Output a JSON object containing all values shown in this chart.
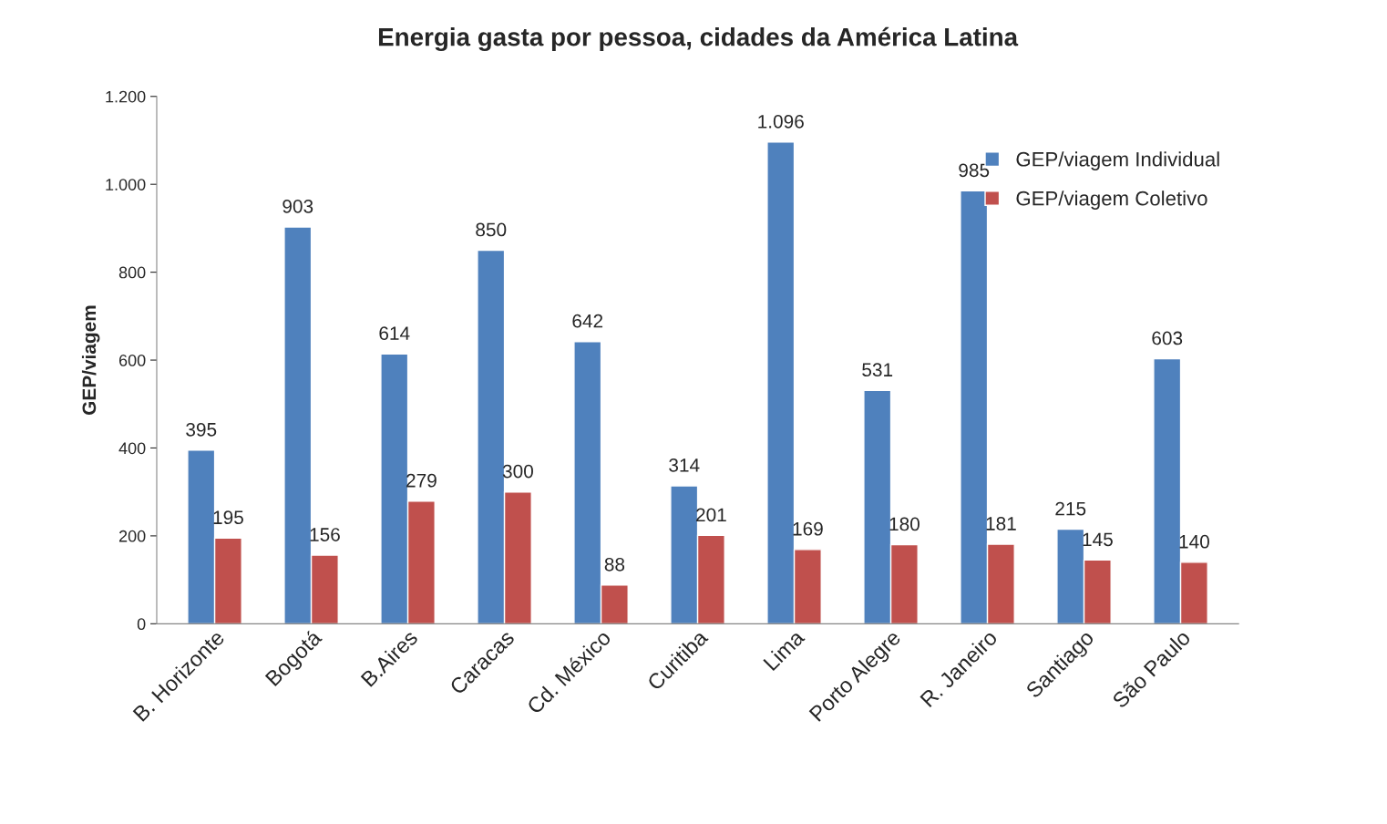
{
  "chart_data": {
    "type": "bar",
    "title": "Energia gasta por pessoa, cidades da América Latina",
    "ylabel": "GEP/viagem",
    "categories": [
      "B. Horizonte",
      "Bogotá",
      "B.Aires",
      "Caracas",
      "Cd. México",
      "Curitiba",
      "Lima",
      "Porto Alegre",
      "R. Janeiro",
      "Santiago",
      "São Paulo"
    ],
    "series": [
      {
        "name": "GEP/viagem Individual",
        "color": "#4f81bd",
        "values": [
          395,
          903,
          614,
          850,
          642,
          314,
          1096,
          531,
          985,
          215,
          603
        ],
        "value_labels": [
          "395",
          "903",
          "614",
          "850",
          "642",
          "314",
          "1.096",
          "531",
          "985",
          "215",
          "603"
        ]
      },
      {
        "name": "GEP/viagem Coletivo",
        "color": "#c0504d",
        "values": [
          195,
          156,
          279,
          300,
          88,
          201,
          169,
          180,
          181,
          145,
          140
        ],
        "value_labels": [
          "195",
          "156",
          "279",
          "300",
          "88",
          "201",
          "169",
          "180",
          "181",
          "145",
          "140"
        ]
      }
    ],
    "ylim": [
      0,
      1200
    ],
    "yticks": [
      0,
      200,
      400,
      600,
      800,
      {
        "value": 1000,
        "label": "1.000"
      },
      {
        "value": 1200,
        "label": "1.200"
      }
    ],
    "grid": false,
    "legend": "right"
  }
}
